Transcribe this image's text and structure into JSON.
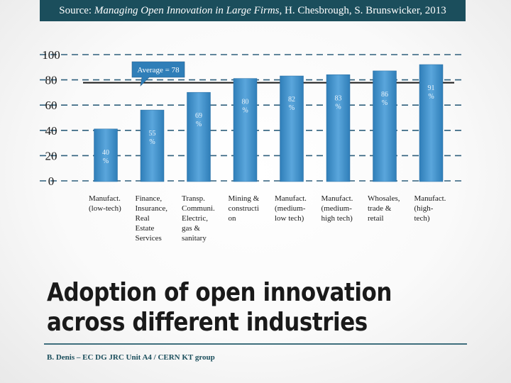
{
  "header": {
    "source_prefix": "Source: ",
    "source_title": "Managing Open Innovation in Large Firms",
    "source_suffix": ", H. Chesbrough, S. Brunswicker, 2013"
  },
  "slide": {
    "title_line1": "Adoption of open innovation",
    "title_line2": "across different industries",
    "footer": "B. Denis – EC DG JRC Unit A4 / CERN KT group"
  },
  "colors": {
    "bar": "#2f7eb8",
    "bar_highlight": "#5aa6dc",
    "average_line": "#1a1a1a",
    "callout": "#2f7eb8",
    "grid": "#2e5f7c",
    "header_bg": "#1b4e5c"
  },
  "chart_data": {
    "type": "bar",
    "title": "",
    "xlabel": "",
    "ylabel": "",
    "ylim": [
      0,
      100
    ],
    "yticks": [
      0,
      20,
      40,
      60,
      80,
      100
    ],
    "grid": true,
    "categories": [
      [
        "Manufact.",
        "(low-tech)"
      ],
      [
        "Finance,",
        "Insurance,",
        "Real",
        "Estate",
        "Services"
      ],
      [
        "Transp.",
        "Communi.",
        "Electric,",
        "gas &",
        "sanitary"
      ],
      [
        "Mining &",
        "constructi",
        "on"
      ],
      [
        "Manufact.",
        "(medium-",
        "low tech)"
      ],
      [
        "Manufact.",
        "(medium-",
        "high tech)"
      ],
      [
        "Whosales,",
        "trade &",
        "retail"
      ],
      [
        "Manufact.",
        "(high-",
        "tech)"
      ]
    ],
    "values": [
      40,
      55,
      69,
      80,
      82,
      83,
      86,
      91
    ],
    "data_labels": [
      [
        "40",
        "%"
      ],
      [
        "55",
        "%"
      ],
      [
        "69",
        "%"
      ],
      [
        "80",
        "%"
      ],
      [
        "82",
        "%"
      ],
      [
        "83",
        "%"
      ],
      [
        "86",
        "%"
      ],
      [
        "91",
        "%"
      ]
    ],
    "average": {
      "value": 78,
      "label": "Average = 78"
    }
  }
}
